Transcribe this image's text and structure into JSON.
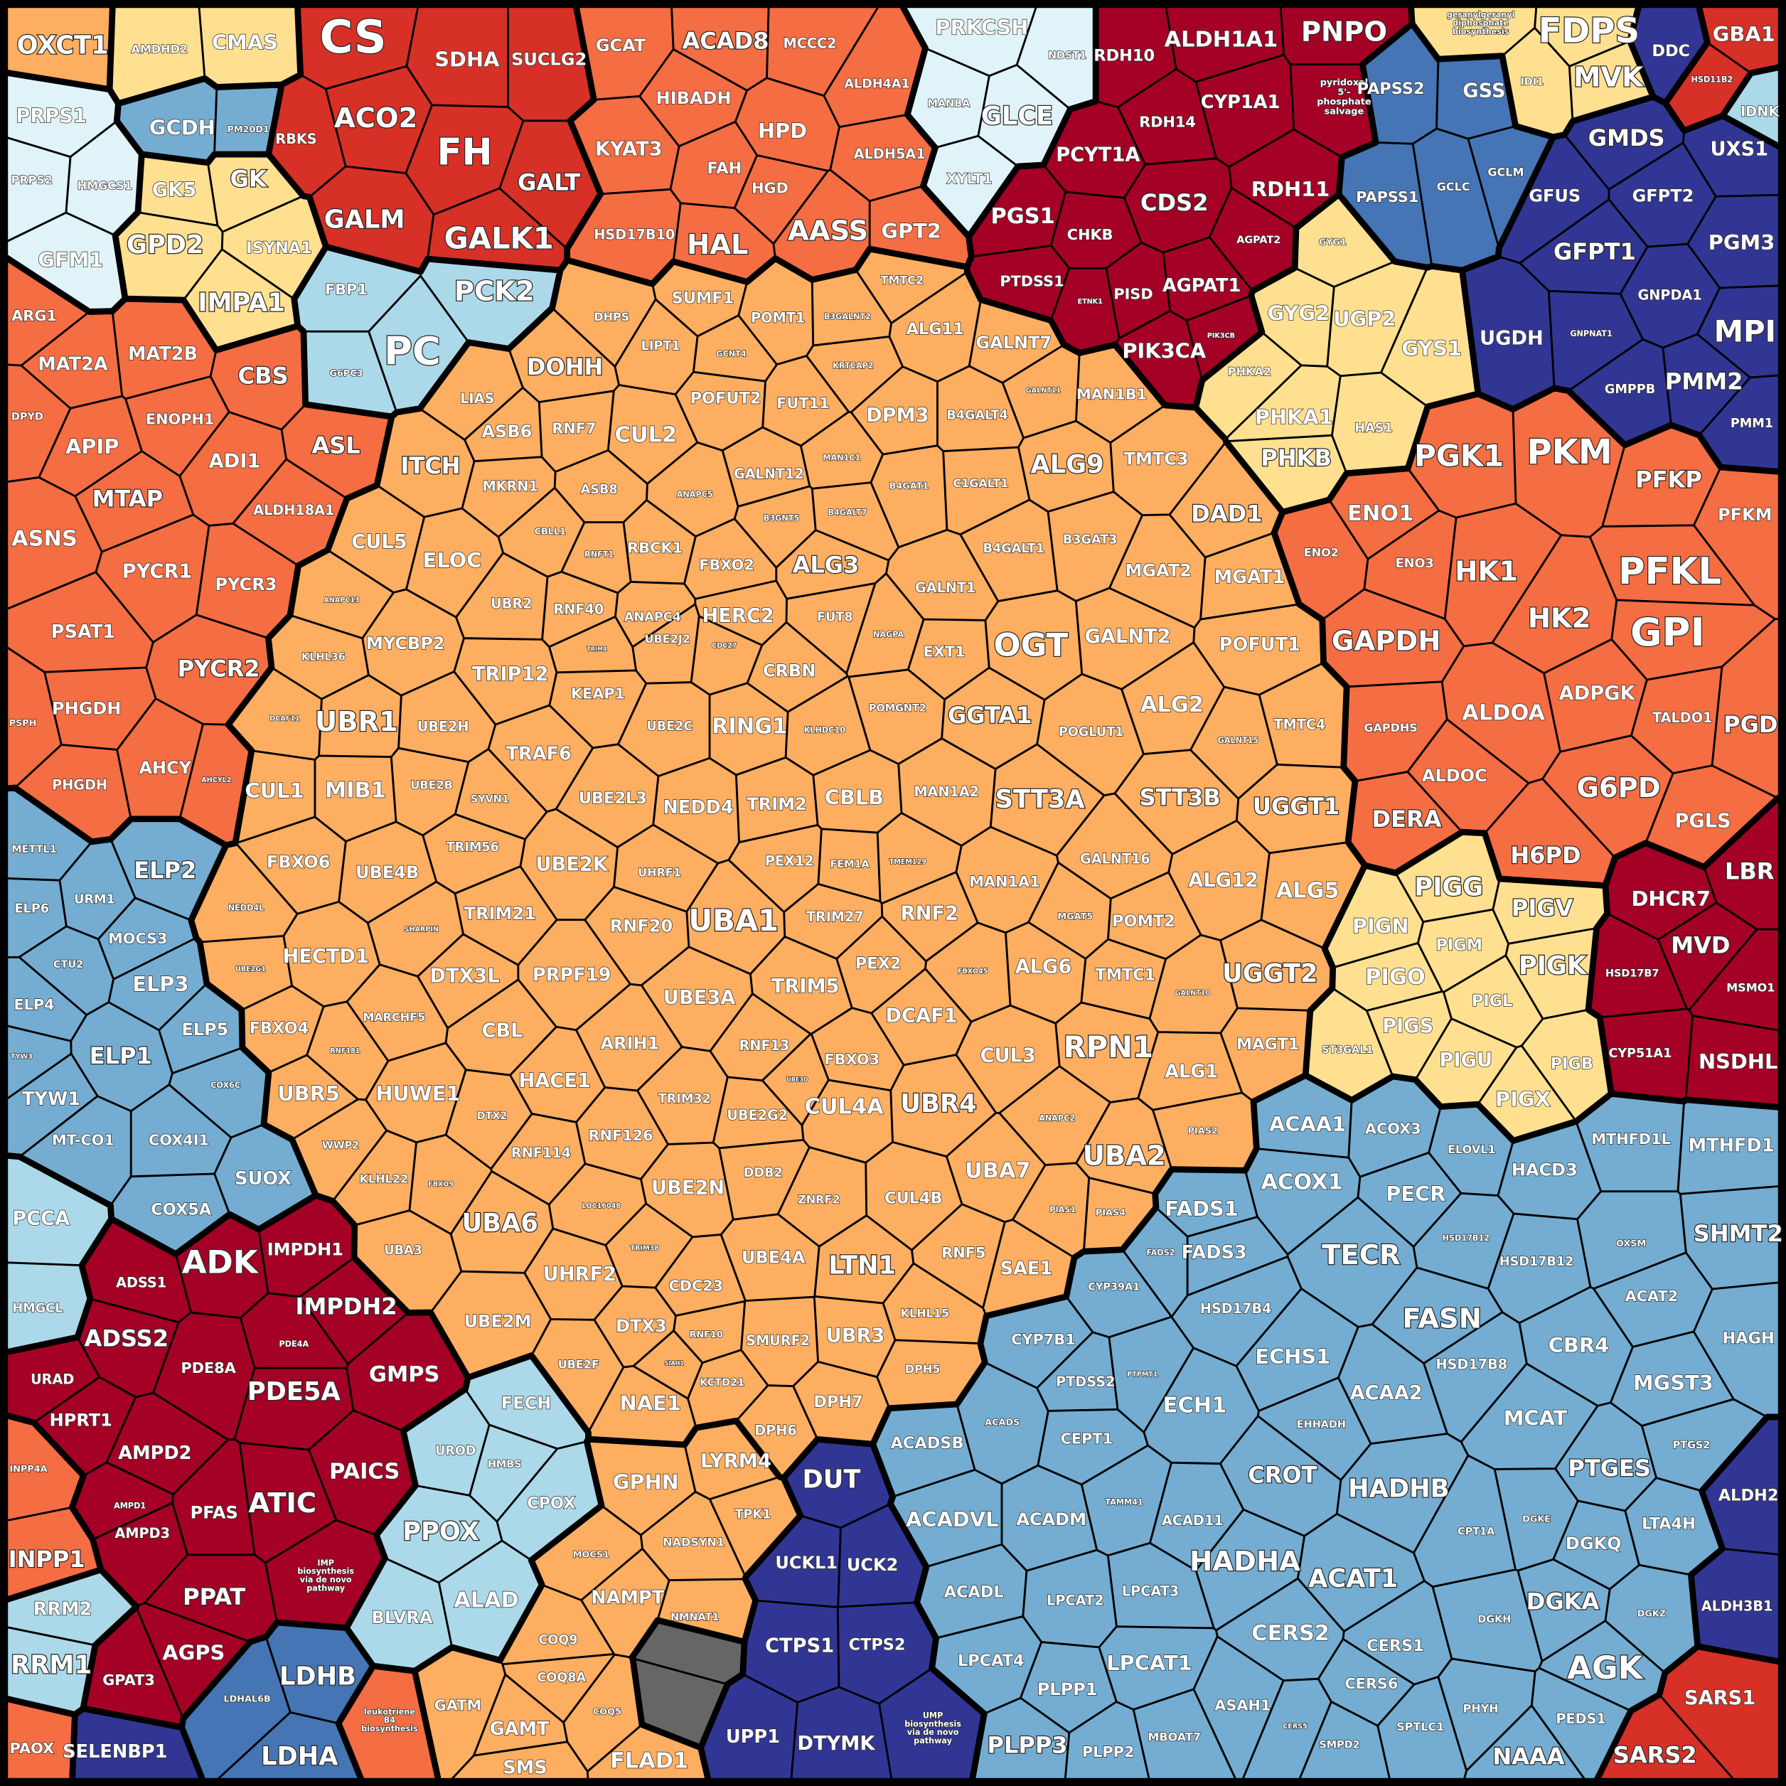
{
  "groups": [
    {
      "color": "#fdae61",
      "cells": [
        "OXCT1"
      ]
    },
    {
      "color": "#fee090",
      "cells": [
        "AMDHD2",
        "CMAS"
      ]
    },
    {
      "color": "#e0f3f8",
      "cells": [
        "PRPS1",
        "PRPS2",
        "HMGCS1",
        "GFM1"
      ]
    },
    {
      "color": "#74add1",
      "cells": [
        "GCDH",
        "PM20D1"
      ]
    },
    {
      "color": "#fee090",
      "cells": [
        "GK5",
        "GK",
        "GPD2",
        "ISYNA1",
        "IMPA1"
      ]
    },
    {
      "color": "#d73027",
      "cells": [
        "CS",
        "SDHA",
        "SUCLG2",
        "ACO2",
        "RBKS",
        "FH",
        "GALT",
        "GALM",
        "GALK1"
      ]
    },
    {
      "color": "#f46d43",
      "cells": [
        "GCAT",
        "ACAD8",
        "MCCC2",
        "HIBADH",
        "ALDH4A1",
        "HPD",
        "KYAT3",
        "FAH",
        "ALDH5A1",
        "HGD",
        "HSD17B10",
        "HAL",
        "AASS",
        "GPT2"
      ]
    },
    {
      "color": "#e0f3f8",
      "cells": [
        "PRKCSH",
        "NDST1",
        "MANBA",
        "GLCE",
        "XYLT1"
      ]
    },
    {
      "color": "#a50026",
      "cells": [
        "RDH10",
        "ALDH1A1",
        "PNPO",
        "pyridoxal\n5'-\nphosphate\nsalvage",
        "RDH14",
        "CYP1A1",
        "PCYT1A",
        "RDH11",
        "PGS1",
        "CHKB",
        "CDS2",
        "AGPAT2",
        "PTDSS1",
        "ETNK1",
        "PISD",
        "AGPAT1",
        "PIK3CB",
        "PIK3CA"
      ]
    },
    {
      "color": "#fee090",
      "cells": [
        "geranylgeranyl\ndiphosphate\nbiosynthesis",
        "FDPS",
        "IDI1",
        "MVK"
      ]
    },
    {
      "color": "#313695",
      "cells": [
        "DDC"
      ]
    },
    {
      "color": "#d73027",
      "cells": [
        "GBA1",
        "HSD11B2"
      ]
    },
    {
      "color": "#abd9e9",
      "cells": [
        "IDNK"
      ]
    },
    {
      "color": "#4575b4",
      "cells": [
        "PAPSS2",
        "GSS",
        "PAPSS1",
        "GCLC",
        "GCLM"
      ]
    },
    {
      "color": "#313695",
      "cells": [
        "GMDS",
        "UXS1",
        "GFUS",
        "GFPT2",
        "GFPT1",
        "PGM3",
        "GNPDA1",
        "UGDH",
        "GNPNAT1",
        "MPI",
        "GMPPB",
        "PMM2",
        "PMM1"
      ]
    },
    {
      "color": "#fee090",
      "cells": [
        "GYG1",
        "GYG2",
        "UGP2",
        "GYS1",
        "PHKA2",
        "PHKA1",
        "HAS1",
        "PHKB"
      ]
    },
    {
      "color": "#f46d43",
      "cells": [
        "PGK1",
        "PKM",
        "PFKP",
        "PFKM",
        "ENO1",
        "ENO2",
        "ENO3",
        "HK1",
        "PFKL",
        "HK2",
        "GPI",
        "GAPDH",
        "ADPGK",
        "GAPDHS",
        "ALDOA",
        "TALDO1",
        "PGD",
        "ALDOC",
        "G6PD",
        "PGLS",
        "DERA",
        "H6PD"
      ]
    },
    {
      "color": "#fee090",
      "cells": [
        "PIGG",
        "PIGV",
        "PIGN",
        "PIGM",
        "PIGK",
        "PIGO",
        "PIGL",
        "PIGS",
        "ST3GAL1",
        "PIGU",
        "PIGB",
        "PIGX"
      ]
    },
    {
      "color": "#a50026",
      "cells": [
        "LBR",
        "DHCR7",
        "MVD",
        "HSD17B7",
        "MSMO1",
        "CYP51A1",
        "NSDHL"
      ]
    },
    {
      "color": "#74add1",
      "cells": [
        "MTHFD1L",
        "MTHFD1",
        "SHMT2",
        "ACAA1",
        "ACOX3",
        "ELOVL1",
        "HACD3",
        "ACOX1",
        "PECR",
        "FADS1",
        "HSD17B12",
        "HSD17B12",
        "OXSM",
        "FADS2",
        "FADS3",
        "TECR",
        "ACAT2",
        "HAGH",
        "CYP39A1",
        "HSD17B4",
        "FASN",
        "CBR4",
        "ECHS1",
        "HSD17B8",
        "MGST3",
        "CYP7B1",
        "PTDSS2",
        "PTPMT1",
        "ECH1",
        "ACAA2",
        "ACADSB",
        "ACADS",
        "CEPT1",
        "EHHADH",
        "MCAT",
        "PTGS2",
        "PTGES",
        "CROT",
        "HADHB",
        "TAMM41",
        "ACAD11",
        "CPT1A",
        "DGKE",
        "LTA4H",
        "DGKQ",
        "ACADVL",
        "ACADM",
        "HADHA",
        "ACAT1",
        "ACADL",
        "LPCAT2",
        "LPCAT3",
        "DGKH",
        "DGKA",
        "DGKZ",
        "CERS2",
        "CERS1",
        "LPCAT4",
        "LPCAT1",
        "CERS6",
        "AGK",
        "PLPP1",
        "ASAH1",
        "CERS5",
        "SMPD2",
        "SPTLC1",
        "PHYH",
        "PEDS1",
        "MBOAT7",
        "PLPP3",
        "PLPP2",
        "NAAA"
      ]
    },
    {
      "color": "#313695",
      "cells": [
        "ALDH2",
        "ALDH3B1"
      ]
    },
    {
      "color": "#d73027",
      "cells": [
        "SARS1",
        "SARS2"
      ]
    },
    {
      "color": "#313695",
      "cells": [
        "DUT",
        "UCKL1",
        "UCK2",
        "CTPS1",
        "CTPS2",
        "UPP1",
        "DTYMK",
        "UMP\nbiosynthesis\nvia de novo\npathway"
      ]
    },
    {
      "color": "#fdae61",
      "cells": [
        "GPHN",
        "LYRM4",
        "TPK1",
        "MOCS1",
        "NADSYN1",
        "NAMPT",
        "NMNAT1",
        "COQ9",
        "COQ8A",
        "COQ5",
        "FLAD1",
        "GATM",
        "GAMT",
        "SMS"
      ]
    },
    {
      "color": "#666666",
      "cells": []
    },
    {
      "color": "#abd9e9",
      "cells": [
        "FECH",
        "UROD",
        "HMBS",
        "CPOX",
        "PPOX",
        "BLVRA",
        "ALAD"
      ]
    },
    {
      "color": "#f46d43",
      "cells": [
        "leukotriene\nB4\nbiosynthesis"
      ]
    },
    {
      "color": "#4575b4",
      "cells": [
        "LDHB",
        "LDHAL6B",
        "LDHA"
      ]
    },
    {
      "color": "#313695",
      "cells": [
        "SELENBP1"
      ]
    },
    {
      "color": "#a50026",
      "cells": [
        "ADK",
        "IMPDH1",
        "ADSS1",
        "IMPDH2",
        "ADSS2",
        "PDE4A",
        "GMPS",
        "URAD",
        "PDE8A",
        "PDE5A",
        "HPRT1",
        "AMPD2",
        "PAICS",
        "AMPD1",
        "PFAS",
        "ATIC",
        "AMPD3",
        "IMP\nbiosynthesis\nvia de novo\npathway",
        "PPAT",
        "AGPS",
        "GPAT3"
      ]
    },
    {
      "color": "#f46d43",
      "cells": [
        "INPP4A",
        "INPP1",
        "PAOX"
      ]
    },
    {
      "color": "#abd9e9",
      "cells": [
        "RRM2",
        "RRM1",
        "PCCA",
        "HMGCL"
      ]
    },
    {
      "color": "#74add1",
      "cells": [
        "METTL1",
        "ELP2",
        "ELP6",
        "URM1",
        "MOCS3",
        "CTU2",
        "ELP3",
        "ELP4",
        "ELP5",
        "ELP1",
        "TYW3",
        "TYW1",
        "COX6C",
        "COX4I1",
        "MT-CO1",
        "COX5A",
        "SUOX"
      ]
    },
    {
      "color": "#f46d43",
      "cells": [
        "ARG1",
        "MAT2A",
        "MAT2B",
        "CBS",
        "DPYD",
        "ENOPH1",
        "APIP",
        "ASL",
        "ADI1",
        "MTAP",
        "ALDH18A1",
        "ASNS",
        "PYCR1",
        "PYCR3",
        "PSAT1",
        "PYCR2",
        "PSPH",
        "PHGDH",
        "AHCY",
        "AHCYL2",
        "PHGDH"
      ]
    },
    {
      "color": "#abd9e9",
      "cells": [
        "FBP1",
        "PCK2",
        "PC",
        "G6PC3"
      ]
    },
    {
      "color": "#fdae61",
      "cells": [
        "DHPS",
        "SUMF1",
        "TMTC2",
        "POMT1",
        "B3GALNT2",
        "ALG11",
        "GALNT7",
        "LIPT1",
        "GCNT4",
        "KRTCAP2",
        "DOHH",
        "LIAS",
        "POFUT2",
        "FUT11",
        "GALNT11",
        "MAN1B1",
        "DPM3",
        "B4GALT4",
        "ASB6",
        "RNF7",
        "CUL2",
        "ITCH",
        "MAN1C1",
        "ALG9",
        "TMTC3",
        "MKRN1",
        "ASB8",
        "ANAPC5",
        "GALNT12",
        "B4GAT1",
        "C1GALT1",
        "B3GNT5",
        "B4GALT7",
        "DAD1",
        "CUL5",
        "CBLL1",
        "ELOC",
        "RNFT1",
        "RBCK1",
        "FBXO2",
        "ALG3",
        "B4GALT1",
        "B3GAT3",
        "MGAT2",
        "MGAT1",
        "ANAPC13",
        "UBR2",
        "RNF40",
        "GALNT1",
        "ANAPC4",
        "HERC2",
        "FUT8",
        "MYCBP2",
        "TRIM4",
        "UBE2J2",
        "NAGPA",
        "EXT1",
        "OGT",
        "GALNT2",
        "POFUT1",
        "KLHL36",
        "TRIP12",
        "CDC27",
        "CRBN",
        "KEAP1",
        "UBE2C",
        "RING1",
        "UBR1",
        "UBE2H",
        "DCAF11",
        "POMGNT2",
        "GGTA1",
        "ALG2",
        "TMTC4",
        "KLHDC10",
        "POGLUT1",
        "GALNT15",
        "TRAF6",
        "CUL1",
        "MIB1",
        "UBE2B",
        "SYVN1",
        "UBE2L3",
        "NEDD4",
        "TRIM2",
        "CBLB",
        "MAN1A2",
        "STT3A",
        "STT3B",
        "UGGT1",
        "TRIM56",
        "FBXO6",
        "UBE4B",
        "UBE2K",
        "UHRF1",
        "PEX12",
        "FEM1A",
        "TMEM129",
        "GALNT16",
        "ALG12",
        "ALG5",
        "MAN1A1",
        "NEDD4L",
        "TRIM21",
        "UBA1",
        "TRIM27",
        "RNF2",
        "RNF20",
        "SHARPIN",
        "MGAT5",
        "POMT2",
        "HECTD1",
        "UBE2G1",
        "DTX3L",
        "PRPF19",
        "PEX2",
        "FBXO45",
        "ALG6",
        "TMTC1",
        "UGGT2",
        "TRIM5",
        "UBE3A",
        "DCAF1",
        "GALNT10",
        "FBXO4",
        "MARCHF5",
        "CBL",
        "RNF181",
        "ARIH1",
        "RNF13",
        "FBXO3",
        "CUL3",
        "RPN1",
        "MAGT1",
        "UBE3D",
        "HACE1",
        "UBR5",
        "HUWE1",
        "ALG1",
        "DTX2",
        "TRIM32",
        "UBR4",
        "UBE2G2",
        "CUL4A",
        "ANAPC2",
        "WWP2",
        "RNF126",
        "PIAS2",
        "UBA2",
        "KLHL22",
        "FBXO9",
        "RNF114",
        "DDB2",
        "UBA7",
        "UBE2N",
        "ZNRF2",
        "CUL4B",
        "LOC16048",
        "PIAS1",
        "PIAS4",
        "UBA6",
        "UBA3",
        "UBE4A",
        "LTN1",
        "RNF5",
        "SAE1",
        "TRIM38",
        "UHRF2",
        "CDC23",
        "KLHL15",
        "UBE2M",
        "DTX3",
        "RNF10",
        "SMURF2",
        "UBR3",
        "UBE2F",
        "SIAH1",
        "KCTD21",
        "DPH5",
        "NAE1",
        "DPH7",
        "DPH6"
      ]
    }
  ]
}
